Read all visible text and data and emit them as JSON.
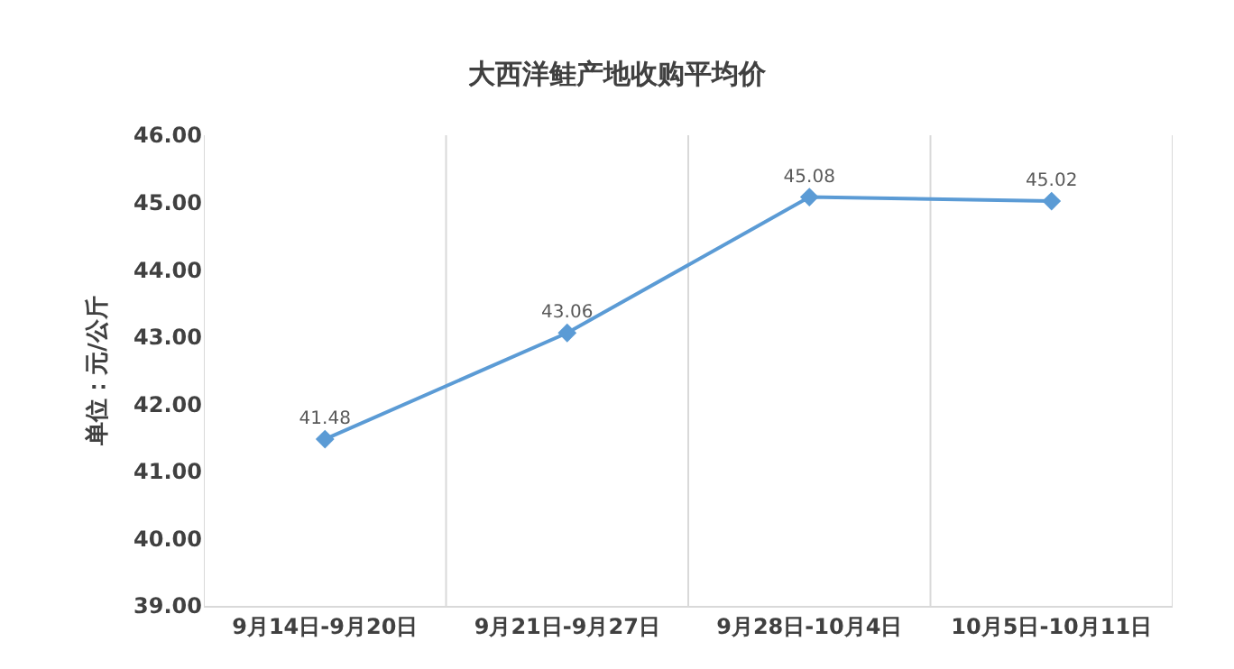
{
  "chart_data": {
    "type": "line",
    "title": "大西洋鲑产地收购平均价",
    "ylabel": "单位：元/公斤",
    "categories": [
      "9月14日-9月20日",
      "9月21日-9月27日",
      "9月28日-10月4日",
      "10月5日-10月11日"
    ],
    "series": [
      {
        "color": "#5b9bd5",
        "values": [
          41.48,
          43.06,
          45.08,
          45.02
        ]
      }
    ],
    "ylim": [
      39,
      46
    ],
    "yticks": [
      {
        "value": 39,
        "label": "39.00"
      },
      {
        "value": 40,
        "label": "40.00"
      },
      {
        "value": 41,
        "label": "41.00"
      },
      {
        "value": 42,
        "label": "42.00"
      },
      {
        "value": 43,
        "label": "43.00"
      },
      {
        "value": 44,
        "label": "44.00"
      },
      {
        "value": 45,
        "label": "45.00"
      },
      {
        "value": 46,
        "label": "46.00"
      }
    ],
    "grid": "x",
    "marker": "diamond",
    "line_style": "solid",
    "data_labels": true,
    "legend": false
  }
}
